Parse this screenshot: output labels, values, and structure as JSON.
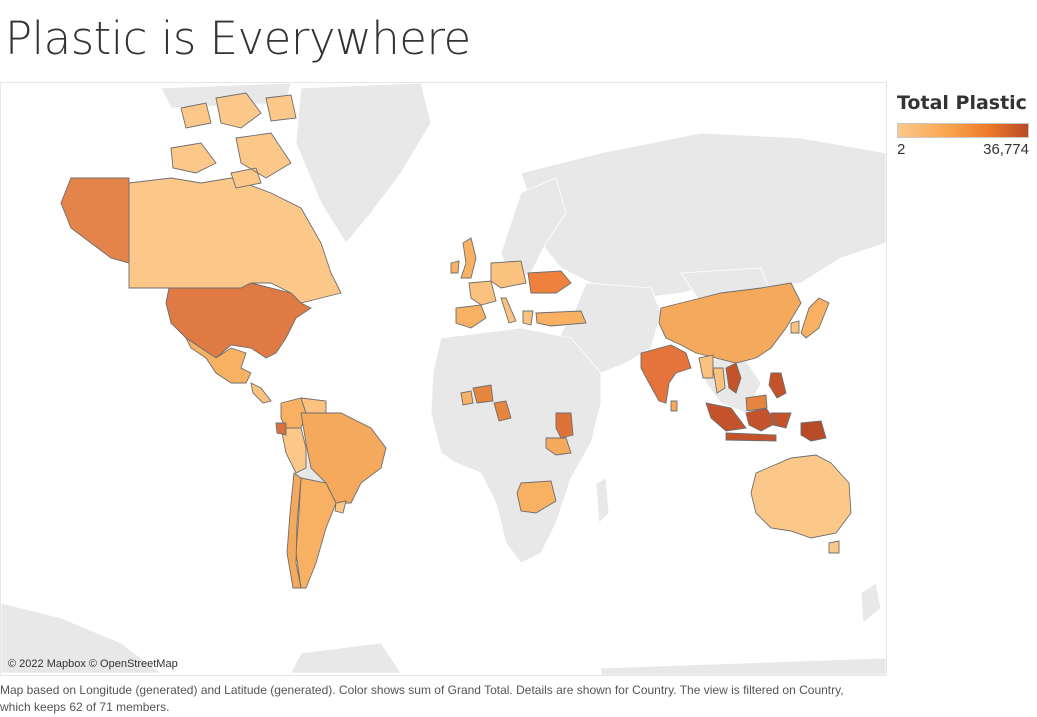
{
  "page": {
    "title": "Plastic is Everywhere"
  },
  "legend": {
    "title": "Total Plastic",
    "min_label": "2",
    "max_label": "36,774",
    "colors": [
      "#fcc88a",
      "#f8a34c",
      "#ed7a2a",
      "#b84a26"
    ]
  },
  "map": {
    "attribution": "© 2022 Mapbox © OpenStreetMap",
    "land_color": "#e8e8e8",
    "border_color": "#6e6e6e",
    "countries": [
      {
        "id": "united-states",
        "shade": 3
      },
      {
        "id": "canada",
        "shade": 1
      },
      {
        "id": "alaska",
        "shade": 3
      },
      {
        "id": "mexico",
        "shade": 2
      },
      {
        "id": "brazil",
        "shade": 2
      },
      {
        "id": "argentina",
        "shade": 1
      },
      {
        "id": "chile",
        "shade": 2
      },
      {
        "id": "colombia",
        "shade": 2
      },
      {
        "id": "peru",
        "shade": 1
      },
      {
        "id": "ukraine",
        "shade": 3
      },
      {
        "id": "india",
        "shade": 3
      },
      {
        "id": "china",
        "shade": 2
      },
      {
        "id": "indonesia",
        "shade": 4
      },
      {
        "id": "philippines",
        "shade": 4
      },
      {
        "id": "vietnam",
        "shade": 4
      },
      {
        "id": "australia",
        "shade": 1
      },
      {
        "id": "south-africa",
        "shade": 2
      },
      {
        "id": "tanzania",
        "shade": 2
      },
      {
        "id": "kenya",
        "shade": 3
      },
      {
        "id": "cameroon",
        "shade": 3
      },
      {
        "id": "nigeria",
        "shade": 3
      },
      {
        "id": "ghana",
        "shade": 2
      },
      {
        "id": "japan",
        "shade": 2
      },
      {
        "id": "turkey",
        "shade": 2
      },
      {
        "id": "spain",
        "shade": 2
      },
      {
        "id": "uk",
        "shade": 2
      },
      {
        "id": "papua-new-guinea",
        "shade": 4
      }
    ]
  },
  "caption": "Map based on Longitude (generated) and Latitude (generated).  Color shows sum of Grand Total.  Details are shown for Country. The view is filtered on Country, which keeps 62 of 71 members."
}
